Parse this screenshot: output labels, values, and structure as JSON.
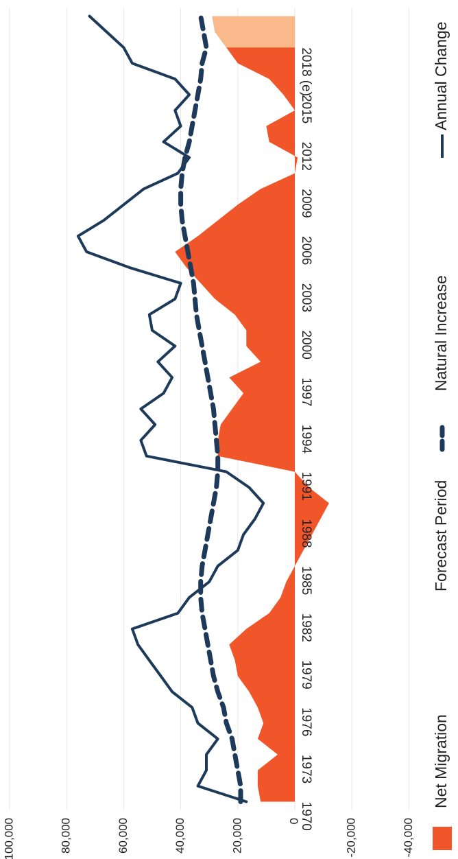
{
  "chart_data": {
    "type": "area",
    "orientation": "rotated-90-cw",
    "y_ticks": [
      "100,000",
      "80,000",
      "60,000",
      "40,000",
      "20,000",
      "0",
      "-20,000",
      "-40,000"
    ],
    "y_tick_values": [
      100000,
      80000,
      60000,
      40000,
      20000,
      0,
      -20000,
      -40000
    ],
    "ylim": [
      -40000,
      100000
    ],
    "x_tick_labels": [
      "1970",
      "1973",
      "1976",
      "1979",
      "1982",
      "1985",
      "1988",
      "1991",
      "1994",
      "1997",
      "2000",
      "2003",
      "2006",
      "2009",
      "2012",
      "2015",
      "2018 (e)"
    ],
    "x_tick_years": [
      1970,
      1973,
      1976,
      1979,
      1982,
      1985,
      1988,
      1991,
      1994,
      1997,
      2000,
      2003,
      2006,
      2009,
      2012,
      2015,
      2018
    ],
    "xlim": [
      1969.5,
      2020.5
    ],
    "grid": true,
    "legend_position": "bottom",
    "forecast_period": [
      2018,
      2020
    ],
    "colors": {
      "net_migration": "#f0562a",
      "forecast": "#f9b98a",
      "annual_change": "#1e3a5a",
      "natural_increase": "#1e3a5a",
      "grid": "#e6e6e6"
    },
    "series": [
      {
        "name": "Net Migration",
        "kind": "area",
        "x": [
          1970,
          1971,
          1972,
          1973,
          1974,
          1975,
          1976,
          1977,
          1978,
          1979,
          1980,
          1981,
          1982,
          1983,
          1984,
          1985,
          1986,
          1987,
          1988,
          1989,
          1990,
          1991,
          1992,
          1993,
          1994,
          1995,
          1996,
          1997,
          1998,
          1999,
          2000,
          2001,
          2002,
          2003,
          2004,
          2005,
          2006,
          2007,
          2008,
          2009,
          2010,
          2011,
          2012,
          2013,
          2014,
          2015,
          2016,
          2017,
          2018,
          2019,
          2020
        ],
        "values": [
          12000,
          13000,
          13000,
          6000,
          13000,
          11000,
          13000,
          16000,
          20000,
          21000,
          23000,
          17000,
          9000,
          5000,
          3000,
          0,
          -3000,
          -6000,
          -9000,
          -12000,
          -5000,
          0,
          27000,
          27000,
          26000,
          22000,
          18000,
          23000,
          12000,
          17000,
          17000,
          21000,
          28000,
          33000,
          38000,
          42000,
          34000,
          27000,
          20000,
          12000,
          0,
          -1000,
          9000,
          10000,
          0,
          4000,
          9000,
          20000,
          24000,
          28000,
          29000
        ]
      },
      {
        "name": "Natural Increase",
        "kind": "dashed-line",
        "x": [
          1970,
          1971,
          1972,
          1973,
          1974,
          1975,
          1976,
          1977,
          1978,
          1979,
          1980,
          1981,
          1982,
          1983,
          1984,
          1985,
          1986,
          1987,
          1988,
          1989,
          1990,
          1991,
          1992,
          1993,
          1994,
          1995,
          1996,
          1997,
          1998,
          1999,
          2000,
          2001,
          2002,
          2003,
          2004,
          2005,
          2006,
          2007,
          2008,
          2009,
          2010,
          2011,
          2012,
          2013,
          2014,
          2015,
          2016,
          2017,
          2018,
          2019,
          2020
        ],
        "values": [
          19000,
          19000,
          20000,
          21000,
          22000,
          24000,
          25000,
          27000,
          28500,
          29500,
          30500,
          31500,
          32500,
          33000,
          33000,
          32500,
          31500,
          30500,
          29500,
          28500,
          27500,
          27000,
          27000,
          27500,
          28000,
          28500,
          29500,
          30500,
          31500,
          32500,
          33500,
          34500,
          35000,
          35500,
          36500,
          37500,
          38500,
          39500,
          40000,
          40000,
          39500,
          38500,
          37000,
          36000,
          35000,
          34000,
          33000,
          32500,
          31000,
          32000,
          33000
        ]
      },
      {
        "name": "Annual Change",
        "kind": "line",
        "x": [
          1970,
          1971,
          1972,
          1973,
          1974,
          1975,
          1976,
          1977,
          1978,
          1979,
          1980,
          1981,
          1982,
          1983,
          1984,
          1985,
          1986,
          1987,
          1988,
          1989,
          1990,
          1991,
          1992,
          1993,
          1994,
          1995,
          1996,
          1997,
          1998,
          1999,
          2000,
          2001,
          2002,
          2003,
          2004,
          2005,
          2006,
          2007,
          2008,
          2009,
          2010,
          2011,
          2012,
          2013,
          2014,
          2015,
          2016,
          2017,
          2018,
          2019,
          2020
        ],
        "values": [
          17000,
          34000,
          31000,
          31000,
          27000,
          34000,
          36000,
          43000,
          47000,
          51000,
          55000,
          57000,
          41000,
          37000,
          30000,
          27000,
          20000,
          18000,
          14000,
          11000,
          16000,
          24000,
          52000,
          54000,
          49000,
          54000,
          46000,
          43000,
          48000,
          42000,
          50000,
          51000,
          42000,
          40000,
          58000,
          73000,
          76000,
          67000,
          60000,
          53000,
          41000,
          37000,
          46000,
          40000,
          42000,
          37000,
          42000,
          57000,
          60000,
          66000,
          72000
        ]
      }
    ]
  },
  "legend": [
    {
      "label": "Net Migration"
    },
    {
      "label": "Forecast Period"
    },
    {
      "label": "Natural Increase"
    },
    {
      "label": "Annual Change"
    }
  ]
}
